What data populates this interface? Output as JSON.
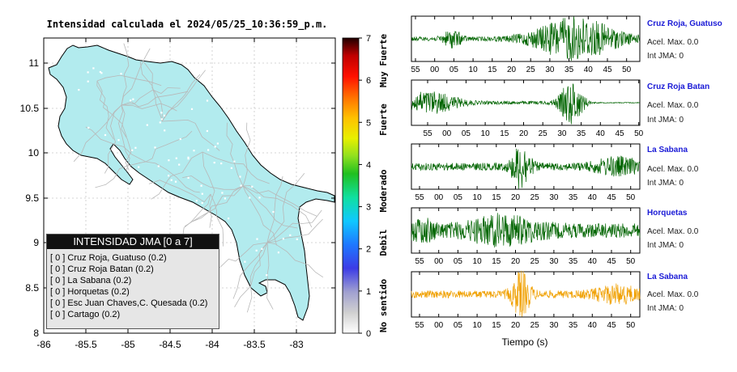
{
  "map": {
    "title": "Intensidad calculada el 2024/05/25_10:36:59_p.m.",
    "lat_ticks": [
      "11",
      "10.5",
      "10",
      "9.5",
      "9",
      "8.5",
      "8"
    ],
    "lon_ticks": [
      "-86",
      "-85.5",
      "-85",
      "-84.5",
      "-84",
      "-83.5",
      "-83"
    ],
    "land_color": "#b2ebee"
  },
  "colorbar": {
    "ticks": [
      "7",
      "6",
      "5",
      "4",
      "3",
      "2",
      "1",
      "0"
    ],
    "labels": [
      "Muy Fuerte",
      "Fuerte",
      "Moderado",
      "Debil",
      "No sentido"
    ]
  },
  "legend": {
    "title": "INTENSIDAD JMA [0 a 7]",
    "items": [
      "[ 0 ]  Cruz Roja, Guatuso (0.2)",
      "[ 0 ]  Cruz Roja Batan (0.2)",
      "[ 0 ]  La Sabana (0.2)",
      "[ 0 ]  Horquetas (0.2)",
      "[ 0 ]  Esc Juan Chaves,C. Quesada (0.2)",
      "[ 0 ]  Cartago (0.2)"
    ]
  },
  "waveforms": [
    {
      "station": "Cruz Roja, Guatuso",
      "accel": "Acel. Max. 0.0",
      "int": "Int JMA: 0",
      "color": "#006400",
      "ticks": [
        "55",
        "00",
        "05",
        "10",
        "15",
        "20",
        "25",
        "30",
        "35",
        "40",
        "45",
        "50"
      ]
    },
    {
      "station": "Cruz Roja Batan",
      "accel": "Acel. Max. 0.0",
      "int": "Int JMA: 0",
      "color": "#006400",
      "ticks": [
        "55",
        "00",
        "05",
        "10",
        "15",
        "20",
        "25",
        "30",
        "35",
        "40",
        "45",
        "50"
      ]
    },
    {
      "station": "La Sabana",
      "accel": "Acel. Max. 0.0",
      "int": "Int JMA: 0",
      "color": "#006400",
      "ticks": [
        "55",
        "00",
        "05",
        "10",
        "15",
        "20",
        "25",
        "30",
        "35",
        "40",
        "45",
        "50"
      ]
    },
    {
      "station": "Horquetas",
      "accel": "Acel. Max. 0.0",
      "int": "Int JMA: 0",
      "color": "#006400",
      "ticks": [
        "55",
        "00",
        "05",
        "10",
        "15",
        "20",
        "25",
        "30",
        "35",
        "40",
        "45",
        "50"
      ]
    },
    {
      "station": "La Sabana",
      "accel": "Acel. Max. 0.0",
      "int": "Int JMA: 0",
      "color": "#f0a000",
      "ticks": [
        "55",
        "00",
        "05",
        "10",
        "15",
        "20",
        "25",
        "30",
        "35",
        "40",
        "45",
        "50"
      ]
    }
  ],
  "xlabel": "Tiempo (s)"
}
